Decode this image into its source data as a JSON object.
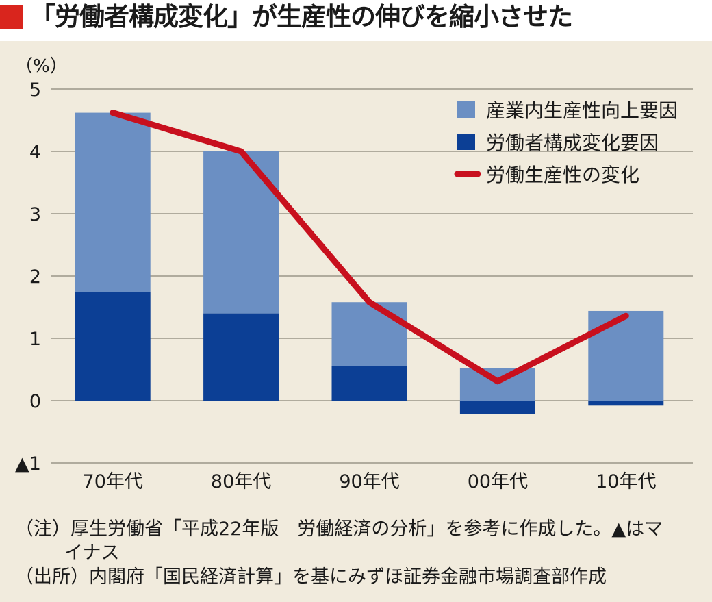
{
  "title": "「労働者構成変化」が生産性の伸びを縮小させた",
  "colors": {
    "title_marker": "#d9251d",
    "light_bar": "#6b8fc3",
    "dark_bar": "#0c3f95",
    "line": "#c8101e",
    "background": "#f1ebdd"
  },
  "chart_data": {
    "type": "bar",
    "stacked": true,
    "unit_label": "（%）",
    "categories": [
      "70年代",
      "80年代",
      "90年代",
      "00年代",
      "10年代"
    ],
    "series": [
      {
        "name": "産業内生産性向上要因",
        "kind": "bar",
        "color": "#6b8fc3",
        "values": [
          2.88,
          2.6,
          1.03,
          0.52,
          1.44
        ]
      },
      {
        "name": "労働者構成変化要因",
        "kind": "bar",
        "color": "#0c3f95",
        "values": [
          1.74,
          1.4,
          0.55,
          -0.21,
          -0.08
        ]
      },
      {
        "name": "労働生産性の変化",
        "kind": "line",
        "color": "#c8101e",
        "values": [
          4.62,
          4.0,
          1.58,
          0.31,
          1.36
        ]
      }
    ],
    "ylim": [
      -1,
      5
    ],
    "yticks": [
      5,
      4,
      3,
      2,
      1,
      0,
      -1
    ],
    "ytick_labels": [
      "5",
      "4",
      "3",
      "2",
      "1",
      "0",
      "▲1"
    ],
    "grid": true,
    "legend_position": "top-right"
  },
  "notes": {
    "note_line_1": "（注）厚生労働省「平成22年版　労働経済の分析」を参考に作成した。▲はマ",
    "note_line_1_cont": "イナス",
    "source": "（出所）内閣府「国民経済計算」を基にみずほ証券金融市場調査部作成"
  }
}
